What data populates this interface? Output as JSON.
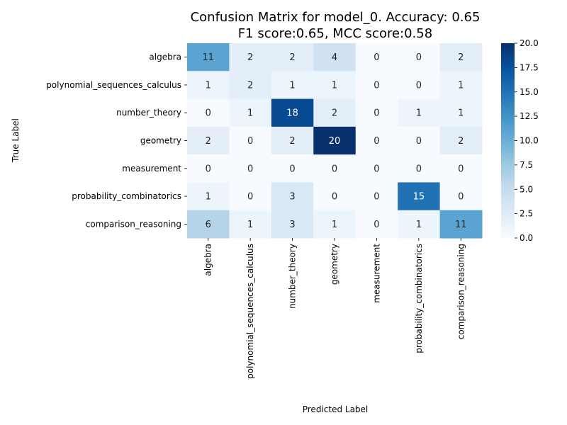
{
  "chart_data": {
    "type": "heatmap",
    "title_line1": "Confusion Matrix for model_0. Accuracy: 0.65",
    "title_line2": "F1 score:0.65, MCC score:0.58",
    "xlabel": "Predicted Label",
    "ylabel": "True Label",
    "x_categories": [
      "algebra",
      "polynomial_sequences_calculus",
      "number_theory",
      "geometry",
      "measurement",
      "probability_combinatorics",
      "comparison_reasoning"
    ],
    "y_categories": [
      "algebra",
      "polynomial_sequences_calculus",
      "number_theory",
      "geometry",
      "measurement",
      "probability_combinatorics",
      "comparison_reasoning"
    ],
    "values": [
      [
        11,
        2,
        2,
        4,
        0,
        0,
        2
      ],
      [
        1,
        2,
        1,
        1,
        0,
        0,
        1
      ],
      [
        0,
        1,
        18,
        2,
        0,
        1,
        1
      ],
      [
        2,
        0,
        2,
        20,
        0,
        0,
        2
      ],
      [
        0,
        0,
        0,
        0,
        0,
        0,
        0
      ],
      [
        1,
        0,
        3,
        0,
        0,
        15,
        0
      ],
      [
        6,
        1,
        3,
        1,
        0,
        1,
        11
      ]
    ],
    "colorbar": {
      "min": 0,
      "max": 20,
      "ticks": [
        "0.0",
        "2.5",
        "5.0",
        "7.5",
        "10.0",
        "12.5",
        "15.0",
        "17.5",
        "20.0"
      ],
      "colormap": "Blues"
    }
  }
}
